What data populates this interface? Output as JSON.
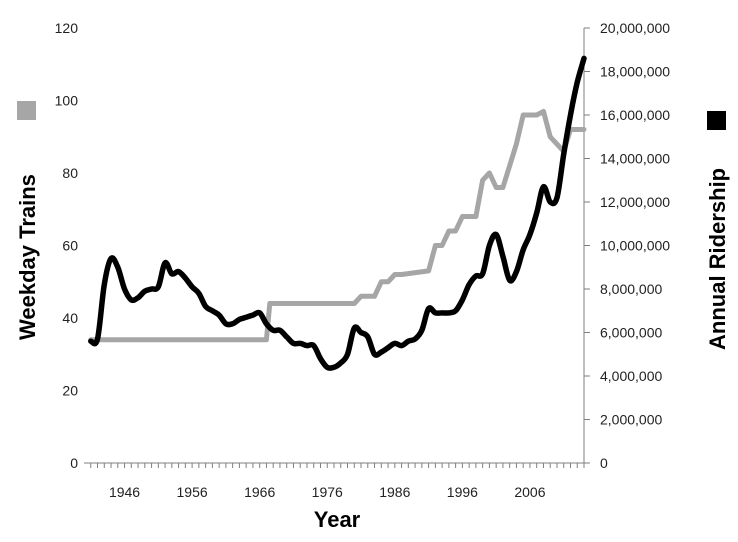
{
  "chart_data": {
    "type": "line",
    "xlabel": "Year",
    "ylabel_left": "Weekday Trains",
    "ylabel_right": "Annual Ridership",
    "x_range": [
      1940,
      2014
    ],
    "y_left_range": [
      0,
      120
    ],
    "y_right_range": [
      0,
      20000000
    ],
    "x_tick_labels": [
      "1946",
      "1956",
      "1966",
      "1976",
      "1986",
      "1996",
      "2006"
    ],
    "y_left_tick_labels": [
      "0",
      "20",
      "40",
      "60",
      "80",
      "100",
      "120"
    ],
    "y_right_tick_labels": [
      "0",
      "2,000,000",
      "4,000,000",
      "6,000,000",
      "8,000,000",
      "10,000,000",
      "12,000,000",
      "14,000,000",
      "16,000,000",
      "18,000,000",
      "20,000,000"
    ],
    "legend": {
      "left_swatch_color": "#a6a6a6",
      "right_swatch_color": "#000000"
    },
    "grid": false,
    "series": [
      {
        "axis": "left",
        "color": "#a6a6a6",
        "x": [
          1941,
          1967,
          1967.5,
          1980,
          1981,
          1983,
          1984,
          1985,
          1986,
          1987,
          1991,
          1992,
          1993,
          1994,
          1995,
          1996,
          1997,
          1998,
          1999,
          2000,
          2001,
          2002,
          2004,
          2005,
          2006,
          2007,
          2008,
          2009,
          2011,
          2012,
          2014
        ],
        "values": [
          34,
          34,
          44,
          44,
          46,
          46,
          50,
          50,
          52,
          52,
          53,
          60,
          60,
          64,
          64,
          68,
          68,
          68,
          78,
          80,
          76,
          76,
          88,
          96,
          96,
          96,
          97,
          90,
          86,
          92,
          92
        ]
      },
      {
        "axis": "right",
        "color": "#000000",
        "x": [
          1941,
          1942,
          1943,
          1944,
          1945,
          1946,
          1947,
          1948,
          1949,
          1950,
          1951,
          1952,
          1953,
          1954,
          1955,
          1956,
          1957,
          1958,
          1959,
          1960,
          1961,
          1962,
          1963,
          1964,
          1965,
          1966,
          1967,
          1968,
          1969,
          1970,
          1971,
          1972,
          1973,
          1974,
          1975,
          1976,
          1977,
          1978,
          1979,
          1980,
          1981,
          1982,
          1983,
          1984,
          1985,
          1986,
          1987,
          1988,
          1989,
          1990,
          1991,
          1992,
          1993,
          1994,
          1995,
          1996,
          1997,
          1998,
          1999,
          2000,
          2001,
          2002,
          2003,
          2004,
          2005,
          2006,
          2007,
          2008,
          2009,
          2010,
          2011,
          2012,
          2013,
          2014
        ],
        "values": [
          5600000,
          5700000,
          8200000,
          9400000,
          9000000,
          8000000,
          7500000,
          7600000,
          7900000,
          8000000,
          8100000,
          9200000,
          8700000,
          8800000,
          8500000,
          8100000,
          7800000,
          7200000,
          7000000,
          6800000,
          6400000,
          6400000,
          6600000,
          6700000,
          6800000,
          6900000,
          6400000,
          6100000,
          6100000,
          5800000,
          5500000,
          5500000,
          5400000,
          5400000,
          4800000,
          4400000,
          4400000,
          4600000,
          5000000,
          6200000,
          6000000,
          5800000,
          5000000,
          5100000,
          5300000,
          5500000,
          5400000,
          5600000,
          5700000,
          6100000,
          7100000,
          6900000,
          6900000,
          6900000,
          7000000,
          7500000,
          8200000,
          8600000,
          8700000,
          10000000,
          10500000,
          9500000,
          8400000,
          8800000,
          9800000,
          10500000,
          11500000,
          12700000,
          12000000,
          12200000,
          14200000,
          16000000,
          17500000,
          18600000
        ]
      }
    ]
  }
}
